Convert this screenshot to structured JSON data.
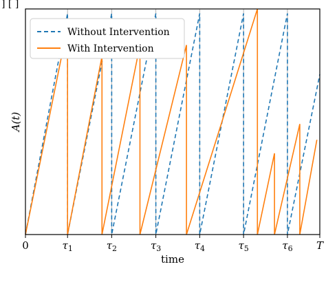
{
  "page_header": "] [ ]",
  "chart_data": {
    "type": "line",
    "xlabel": "time",
    "ylabel": "A(t)",
    "xlim": [
      0,
      1.0
    ],
    "ylim": [
      0,
      1.0
    ],
    "grid": "vertical lines at tau ticks",
    "legend_position": "top-left",
    "x_ticks": [
      {
        "label": "0",
        "value": 0
      },
      {
        "label": "τ1",
        "value": 0.143
      },
      {
        "label": "τ2",
        "value": 0.293
      },
      {
        "label": "τ3",
        "value": 0.443
      },
      {
        "label": "τ4",
        "value": 0.592
      },
      {
        "label": "τ5",
        "value": 0.741
      },
      {
        "label": "τ6",
        "value": 0.89
      },
      {
        "label": "T",
        "value": 1.0
      }
    ],
    "colors": {
      "without": "#1f77b4",
      "with": "#ff7f0e",
      "grid": "#b0b0b0"
    },
    "series": [
      {
        "name": "Without Intervention",
        "style": "dashed",
        "points": [
          [
            0,
            0
          ],
          [
            0.143,
            0.98
          ],
          [
            0.143,
            0
          ],
          [
            0.293,
            0.98
          ],
          [
            0.293,
            0
          ],
          [
            0.443,
            0.98
          ],
          [
            0.443,
            0
          ],
          [
            0.592,
            0.98
          ],
          [
            0.592,
            0
          ],
          [
            0.741,
            0.98
          ],
          [
            0.741,
            0
          ],
          [
            0.89,
            0.98
          ],
          [
            0.89,
            0
          ],
          [
            1.0,
            0.71
          ]
        ]
      },
      {
        "name": "With Intervention",
        "style": "solid",
        "points": [
          [
            0,
            0
          ],
          [
            0.143,
            0.92
          ],
          [
            0.143,
            0
          ],
          [
            0.26,
            0.79
          ],
          [
            0.26,
            0
          ],
          [
            0.389,
            0.84
          ],
          [
            0.389,
            0
          ],
          [
            0.547,
            0.84
          ],
          [
            0.547,
            0
          ],
          [
            0.788,
            1.0
          ],
          [
            0.788,
            0
          ],
          [
            0.846,
            0.36
          ],
          [
            0.846,
            0
          ],
          [
            0.932,
            0.49
          ],
          [
            0.932,
            0
          ],
          [
            0.99,
            0.42
          ]
        ]
      }
    ]
  }
}
